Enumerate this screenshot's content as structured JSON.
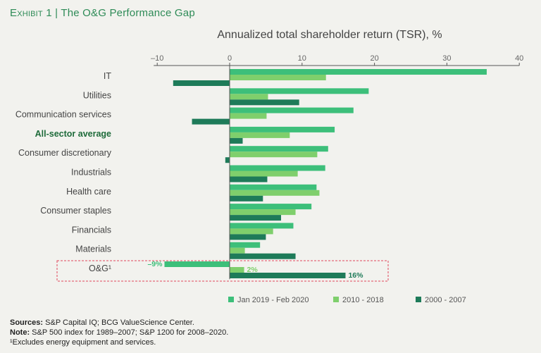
{
  "header": {
    "exhibit_label": "Exhibit 1",
    "separator": "|",
    "title": "The O&G Performance Gap"
  },
  "footer": {
    "sources_label": "Sources:",
    "sources_text": "S&P Capital IQ; BCG ValueScience Center.",
    "note_label": "Note:",
    "note_text": "S&P 500 index for 1989–2007; S&P 1200 for 2008–2020.",
    "footnote": "¹Excludes energy equipment and services."
  },
  "colors": {
    "series1": "#3dbf7a",
    "series2": "#7fcf6c",
    "series3": "#1e7b59",
    "highlight_label": "#1e6b3a",
    "label": "#444444",
    "axis": "#555555",
    "og_box": "#e0465c"
  },
  "chart_data": {
    "type": "bar",
    "orientation": "horizontal",
    "title": "Annualized total shareholder return (TSR), %",
    "xlim": [
      -10,
      40
    ],
    "xticks": [
      -10,
      0,
      10,
      20,
      30,
      40
    ],
    "xtick_labels": [
      "–10",
      "0",
      "10",
      "20",
      "30",
      "40"
    ],
    "categories": [
      "IT",
      "Utilities",
      "Communication services",
      "All-sector average",
      "Consumer discretionary",
      "Industrials",
      "Health care",
      "Consumer staples",
      "Financials",
      "Materials",
      "O&G¹"
    ],
    "highlight_category": "All-sector average",
    "boxed_category": "O&G¹",
    "series": [
      {
        "name": "Jan 2019 - Feb 2020",
        "values": [
          35.5,
          19.2,
          17.1,
          14.5,
          13.6,
          13.2,
          12.0,
          11.3,
          8.8,
          4.2,
          -9
        ]
      },
      {
        "name": "2010 - 2018",
        "values": [
          13.3,
          5.3,
          5.1,
          8.3,
          12.1,
          9.4,
          12.4,
          9.1,
          6.0,
          2.1,
          2
        ]
      },
      {
        "name": "2000 - 2007",
        "values": [
          -7.8,
          9.6,
          -5.2,
          1.8,
          -0.6,
          5.2,
          4.6,
          7.1,
          5.0,
          9.1,
          16
        ]
      }
    ],
    "data_labels": [
      {
        "category": "O&G¹",
        "series": 0,
        "text": "–9%"
      },
      {
        "category": "O&G¹",
        "series": 1,
        "text": "2%"
      },
      {
        "category": "O&G¹",
        "series": 2,
        "text": "16%"
      }
    ],
    "legend_position": "bottom"
  }
}
